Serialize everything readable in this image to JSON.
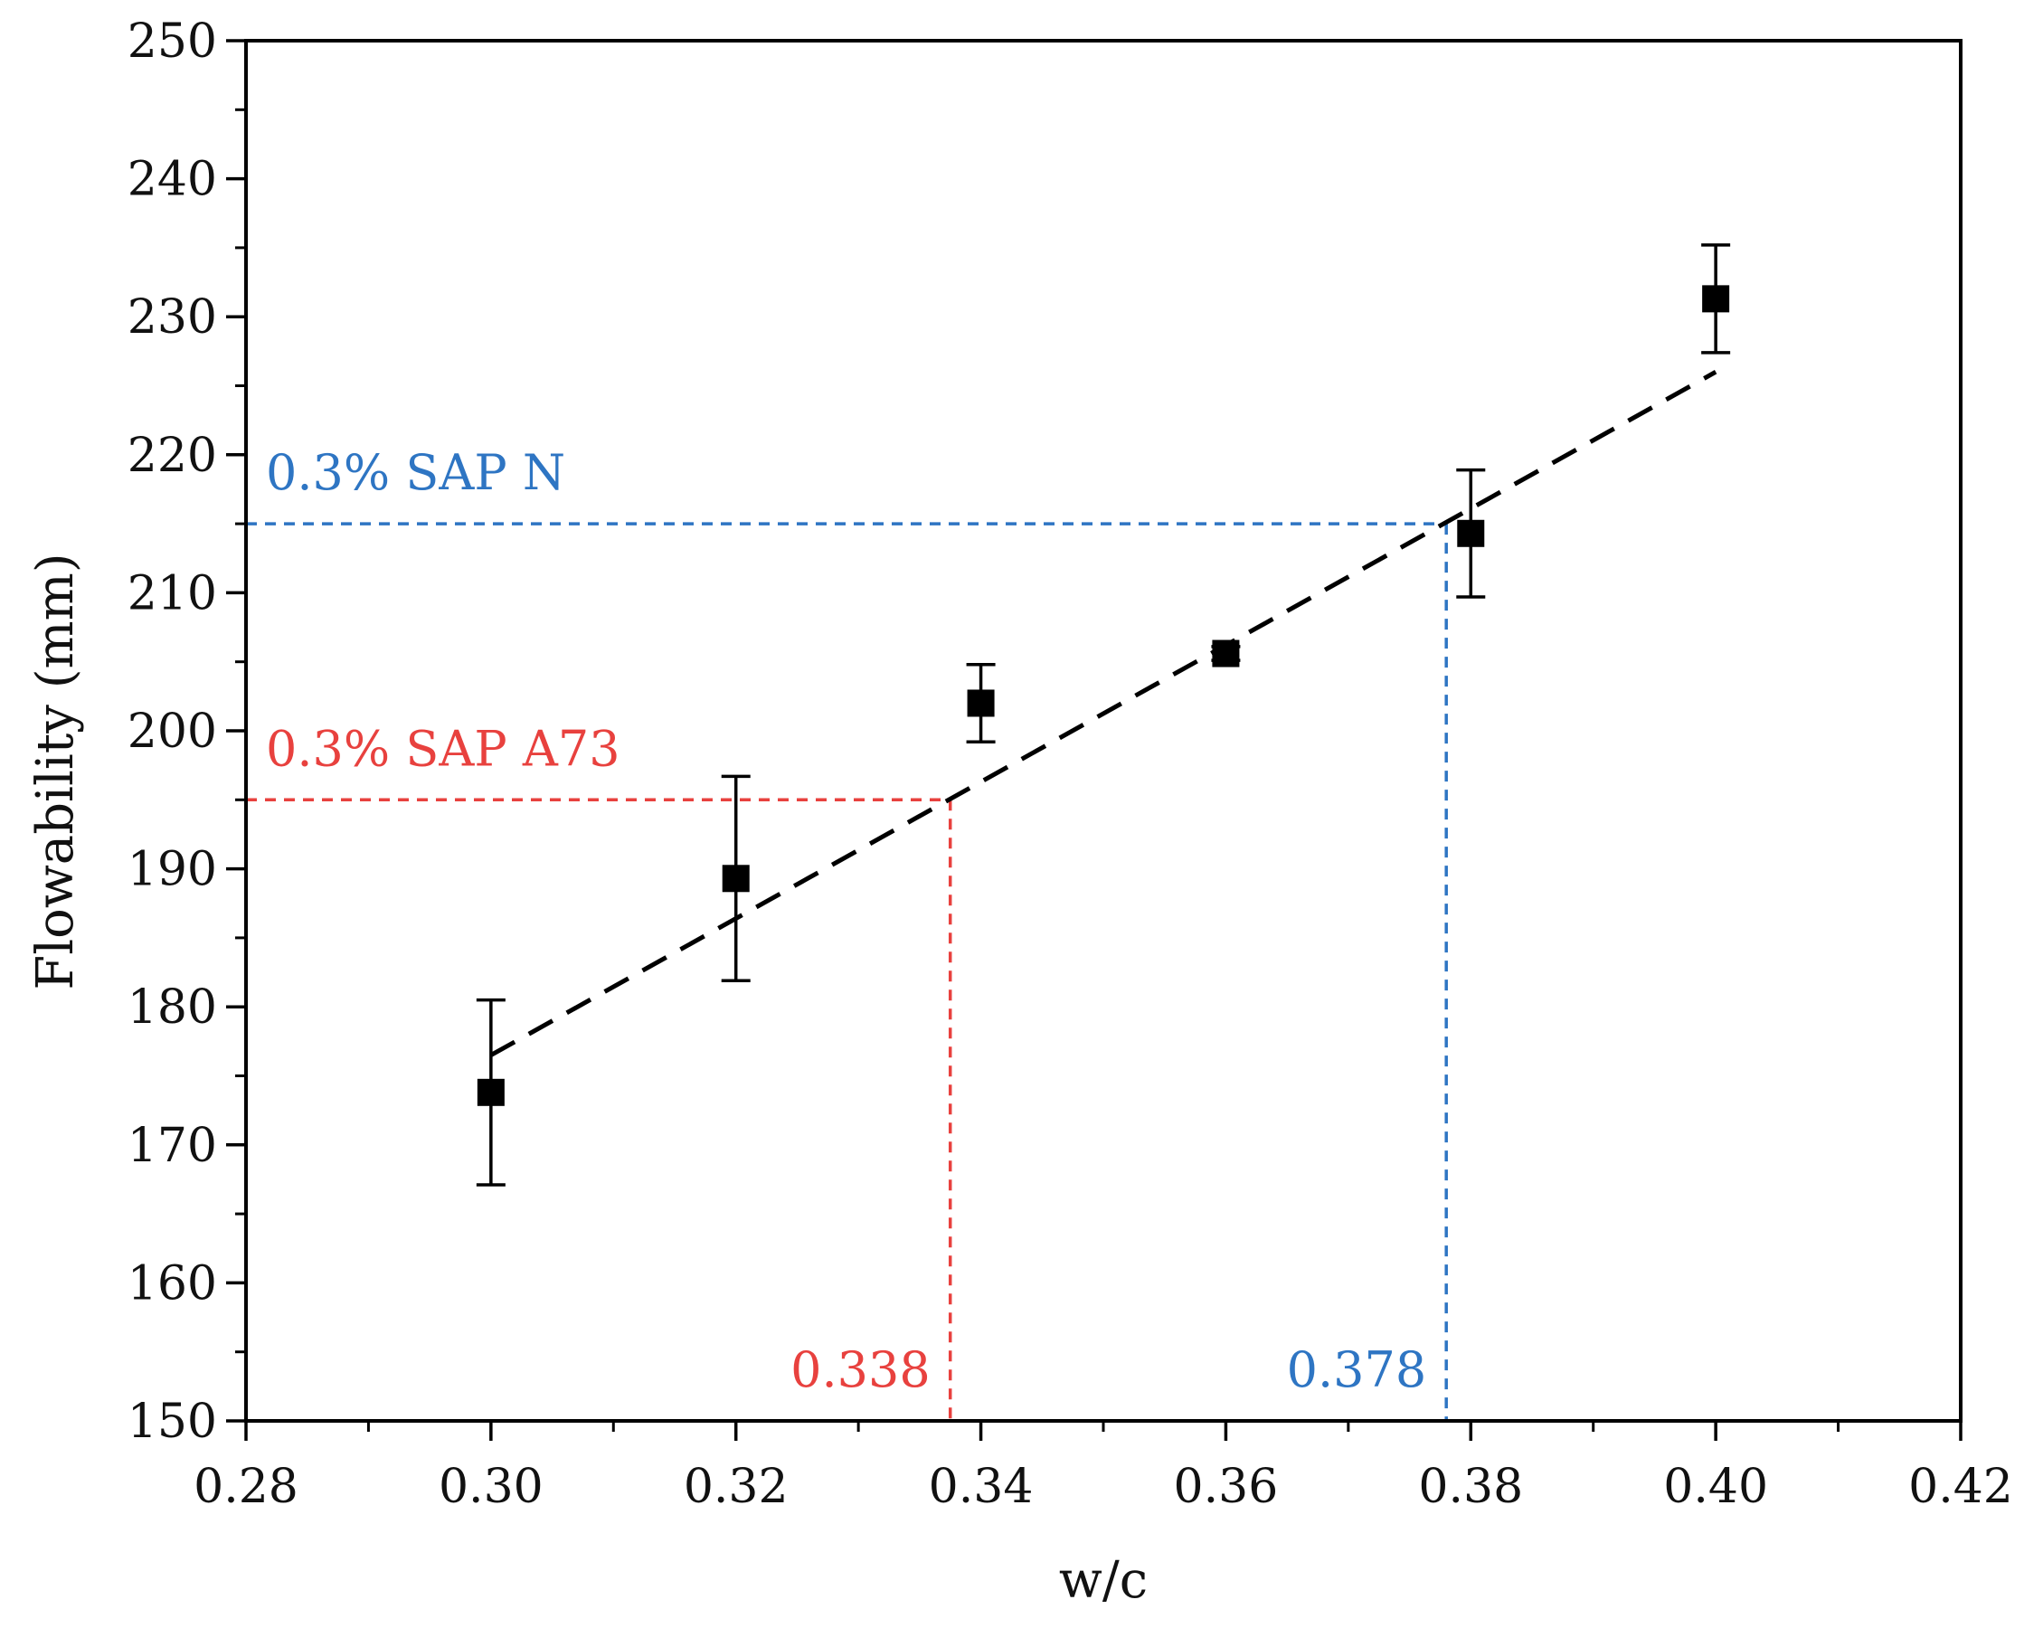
{
  "chart_data": {
    "type": "scatter",
    "title": "",
    "xlabel": "w/c",
    "ylabel": "Flowability (mm)",
    "xlim": [
      0.28,
      0.42
    ],
    "ylim": [
      150,
      250
    ],
    "xticks": [
      {
        "value": 0.28,
        "label": "0.28"
      },
      {
        "value": 0.3,
        "label": "0.30"
      },
      {
        "value": 0.32,
        "label": "0.32"
      },
      {
        "value": 0.34,
        "label": "0.34"
      },
      {
        "value": 0.36,
        "label": "0.36"
      },
      {
        "value": 0.38,
        "label": "0.38"
      },
      {
        "value": 0.4,
        "label": "0.40"
      },
      {
        "value": 0.42,
        "label": "0.42"
      }
    ],
    "yticks": [
      {
        "value": 150,
        "label": "150"
      },
      {
        "value": 160,
        "label": "160"
      },
      {
        "value": 170,
        "label": "170"
      },
      {
        "value": 180,
        "label": "180"
      },
      {
        "value": 190,
        "label": "190"
      },
      {
        "value": 200,
        "label": "200"
      },
      {
        "value": 210,
        "label": "210"
      },
      {
        "value": 220,
        "label": "220"
      },
      {
        "value": 230,
        "label": "230"
      },
      {
        "value": 240,
        "label": "240"
      },
      {
        "value": 250,
        "label": "250"
      }
    ],
    "series": [
      {
        "name": "Flowability",
        "marker": "square",
        "color": "#000000",
        "points": [
          {
            "x": 0.3,
            "y": 173.8,
            "err_low": 167.1,
            "err_high": 180.5
          },
          {
            "x": 0.32,
            "y": 189.3,
            "err_low": 181.9,
            "err_high": 196.7
          },
          {
            "x": 0.34,
            "y": 202.0,
            "err_low": 199.2,
            "err_high": 204.8
          },
          {
            "x": 0.36,
            "y": 205.6,
            "err_low": 205.1,
            "err_high": 206.1
          },
          {
            "x": 0.38,
            "y": 214.3,
            "err_low": 209.7,
            "err_high": 218.9
          },
          {
            "x": 0.4,
            "y": 231.3,
            "err_low": 227.4,
            "err_high": 235.2
          }
        ]
      }
    ],
    "fit_line": {
      "x": [
        0.3,
        0.4
      ],
      "y": [
        176.5,
        226.0
      ],
      "color": "#000000",
      "style": "dashed"
    },
    "annotations": [
      {
        "label": "0.3% SAP N",
        "value_label": "0.378",
        "x": 0.378,
        "y": 215,
        "color": "#2e75c3"
      },
      {
        "label": "0.3% SAP A73",
        "value_label": "0.338",
        "x": 0.3375,
        "y": 195,
        "color": "#e8413e"
      }
    ],
    "grid": false,
    "legend": "none"
  }
}
